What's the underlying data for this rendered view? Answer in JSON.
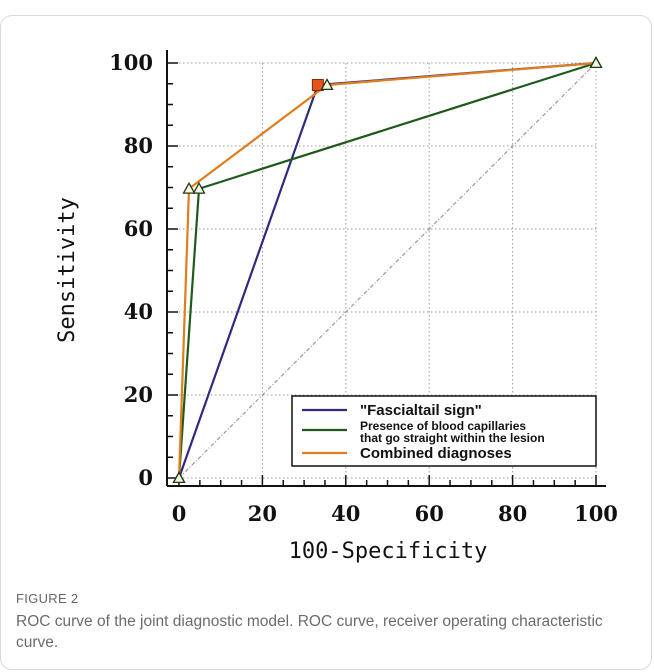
{
  "chart_data": {
    "type": "line",
    "xlabel": "100-Specificity",
    "ylabel": "Sensitivity",
    "xlim": [
      0,
      100
    ],
    "ylim": [
      0,
      100
    ],
    "xticks": [
      "0",
      "20",
      "40",
      "60",
      "80",
      "100"
    ],
    "yticks": [
      "0",
      "20",
      "40",
      "60",
      "80",
      "100"
    ],
    "grid": true,
    "legend_position": "bottom-right",
    "reference_line": {
      "x": [
        0,
        100
      ],
      "y": [
        0,
        100
      ],
      "color": "#999999"
    },
    "series": [
      {
        "name": "\"Fascialtail sign\"",
        "color": "#2e2a82",
        "marker": "square",
        "marker_color": "#e8531c",
        "x": [
          0,
          33.3,
          100
        ],
        "y": [
          0,
          94.7,
          100
        ]
      },
      {
        "name": "Presence of blood capillaries that go straight within the lesion",
        "color": "#1f5a1a",
        "marker": "triangle",
        "x": [
          0,
          4.8,
          100
        ],
        "y": [
          0,
          69.7,
          100
        ]
      },
      {
        "name": "Combined diagnoses",
        "color": "#e07d1d",
        "marker": "triangle",
        "x": [
          0,
          2.4,
          35.5,
          100
        ],
        "y": [
          0,
          69.7,
          94.7,
          100
        ]
      }
    ]
  },
  "caption": {
    "label": "FIGURE 2",
    "text": "ROC curve of the joint diagnostic model. ROC curve, receiver operating characteristic curve."
  }
}
